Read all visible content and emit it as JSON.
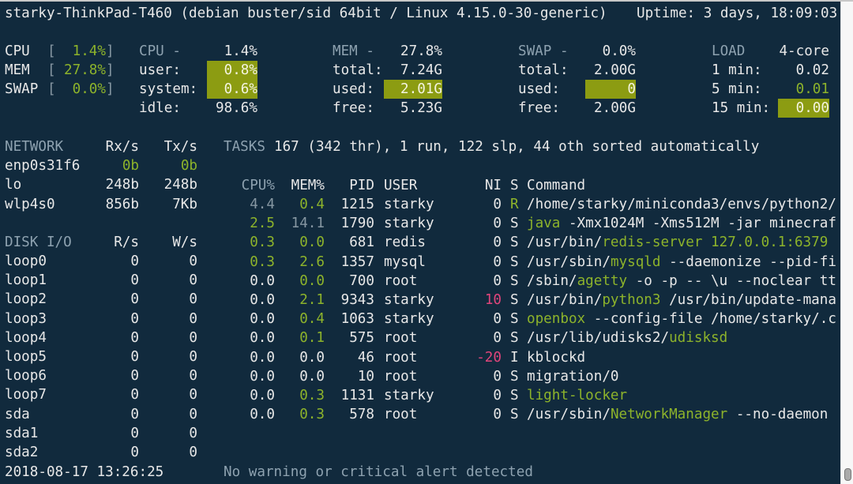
{
  "header": {
    "host": "starky-ThinkPad-T460 (debian buster/sid 64bit / Linux 4.15.0-30-generic)",
    "uptime": "Uptime: 3 days, 18:09:03"
  },
  "quicklook": [
    {
      "label": "CPU",
      "value": "1.4%"
    },
    {
      "label": "MEM",
      "value": "27.8%"
    },
    {
      "label": "SWAP",
      "value": "0.0%"
    }
  ],
  "cpu": {
    "title": "CPU -",
    "total": "1.4%",
    "rows": [
      {
        "label": "user:",
        "value": "0.8%",
        "highlight": true
      },
      {
        "label": "system:",
        "value": "0.6%",
        "highlight": true
      },
      {
        "label": "idle:",
        "value": "98.6%",
        "highlight": false
      }
    ]
  },
  "mem": {
    "title": "MEM -",
    "total": "27.8%",
    "rows": [
      {
        "label": "total:",
        "value": "7.24G",
        "highlight": false
      },
      {
        "label": "used:",
        "value": "2.01G",
        "highlight": true
      },
      {
        "label": "free:",
        "value": "5.23G",
        "highlight": false
      }
    ]
  },
  "swap": {
    "title": "SWAP -",
    "total": "0.0%",
    "rows": [
      {
        "label": "total:",
        "value": "2.00G",
        "highlight": false
      },
      {
        "label": "used:",
        "value": "0",
        "highlight": true
      },
      {
        "label": "free:",
        "value": "2.00G",
        "highlight": false
      }
    ]
  },
  "load": {
    "title": "LOAD",
    "total": "4-core",
    "rows": [
      {
        "label": "1 min:",
        "value": "0.02",
        "highlight": false,
        "color": "normal"
      },
      {
        "label": "5 min:",
        "value": "0.01",
        "highlight": false,
        "color": "green"
      },
      {
        "label": "15 min:",
        "value": "0.00",
        "highlight": true,
        "color": "normal"
      }
    ]
  },
  "network": {
    "title": "NETWORK",
    "rx_label": "Rx/s",
    "tx_label": "Tx/s",
    "rows": [
      {
        "name": "enp0s31f6",
        "rx": "0b",
        "tx": "0b",
        "green": true
      },
      {
        "name": "lo",
        "rx": "248b",
        "tx": "248b",
        "green": false
      },
      {
        "name": "wlp4s0",
        "rx": "856b",
        "tx": "7Kb",
        "green": false
      }
    ]
  },
  "disk": {
    "title": "DISK I/O",
    "r_label": "R/s",
    "w_label": "W/s",
    "rows": [
      {
        "name": "loop0",
        "r": "0",
        "w": "0"
      },
      {
        "name": "loop1",
        "r": "0",
        "w": "0"
      },
      {
        "name": "loop2",
        "r": "0",
        "w": "0"
      },
      {
        "name": "loop3",
        "r": "0",
        "w": "0"
      },
      {
        "name": "loop4",
        "r": "0",
        "w": "0"
      },
      {
        "name": "loop5",
        "r": "0",
        "w": "0"
      },
      {
        "name": "loop6",
        "r": "0",
        "w": "0"
      },
      {
        "name": "loop7",
        "r": "0",
        "w": "0"
      },
      {
        "name": "sda",
        "r": "0",
        "w": "0"
      },
      {
        "name": "sda1",
        "r": "0",
        "w": "0"
      },
      {
        "name": "sda2",
        "r": "0",
        "w": "0"
      }
    ]
  },
  "tasks": {
    "label": "TASKS",
    "summary": "167 (342 thr), 1 run, 122 slp, 44 oth sorted automatically"
  },
  "processes": {
    "columns": {
      "cpu": "CPU%",
      "mem": "MEM%",
      "pid": "PID",
      "user": "USER",
      "ni": "NI",
      "s": "S",
      "command": "Command"
    },
    "rows": [
      {
        "cpu": "4.4",
        "cpu_c": "dim",
        "mem": "0.4",
        "mem_c": "g",
        "pid": "1215",
        "user": "starky",
        "ni": "0",
        "ni_c": "",
        "s": "R",
        "s_c": "g",
        "cmd": [
          {
            "t": "/home/starky/miniconda3/envs/python2/",
            "c": ""
          }
        ]
      },
      {
        "cpu": "2.5",
        "cpu_c": "g",
        "mem": "14.1",
        "mem_c": "dim",
        "pid": "1790",
        "user": "starky",
        "ni": "0",
        "ni_c": "",
        "s": "S",
        "s_c": "",
        "cmd": [
          {
            "t": "java",
            "c": "g"
          },
          {
            "t": " -Xmx1024M -Xms512M -jar minecraf",
            "c": ""
          }
        ]
      },
      {
        "cpu": "0.3",
        "cpu_c": "g",
        "mem": "0.0",
        "mem_c": "g",
        "pid": "681",
        "user": "redis",
        "ni": "0",
        "ni_c": "",
        "s": "S",
        "s_c": "",
        "cmd": [
          {
            "t": "/usr/bin/",
            "c": ""
          },
          {
            "t": "redis-server 127.0.0.1:6379",
            "c": "g"
          }
        ]
      },
      {
        "cpu": "0.3",
        "cpu_c": "g",
        "mem": "2.6",
        "mem_c": "g",
        "pid": "1357",
        "user": "mysql",
        "ni": "0",
        "ni_c": "",
        "s": "S",
        "s_c": "",
        "cmd": [
          {
            "t": "/usr/sbin/",
            "c": ""
          },
          {
            "t": "mysqld",
            "c": "g"
          },
          {
            "t": " --daemonize --pid-fi",
            "c": ""
          }
        ]
      },
      {
        "cpu": "0.0",
        "cpu_c": "",
        "mem": "0.0",
        "mem_c": "g",
        "pid": "700",
        "user": "root",
        "ni": "0",
        "ni_c": "",
        "s": "S",
        "s_c": "",
        "cmd": [
          {
            "t": "/sbin/",
            "c": ""
          },
          {
            "t": "agetty",
            "c": "g"
          },
          {
            "t": " -o -p -- \\u --noclear tt",
            "c": ""
          }
        ]
      },
      {
        "cpu": "0.0",
        "cpu_c": "",
        "mem": "2.1",
        "mem_c": "g",
        "pid": "9343",
        "user": "starky",
        "ni": "10",
        "ni_c": "mag",
        "s": "S",
        "s_c": "",
        "cmd": [
          {
            "t": "/usr/bin/",
            "c": ""
          },
          {
            "t": "python3",
            "c": "g"
          },
          {
            "t": " /usr/bin/update-mana",
            "c": ""
          }
        ]
      },
      {
        "cpu": "0.0",
        "cpu_c": "",
        "mem": "0.4",
        "mem_c": "g",
        "pid": "1063",
        "user": "starky",
        "ni": "0",
        "ni_c": "",
        "s": "S",
        "s_c": "",
        "cmd": [
          {
            "t": "openbox",
            "c": "g"
          },
          {
            "t": " --config-file /home/starky/.c",
            "c": ""
          }
        ]
      },
      {
        "cpu": "0.0",
        "cpu_c": "",
        "mem": "0.1",
        "mem_c": "g",
        "pid": "575",
        "user": "root",
        "ni": "0",
        "ni_c": "",
        "s": "S",
        "s_c": "",
        "cmd": [
          {
            "t": "/usr/lib/udisks2/",
            "c": ""
          },
          {
            "t": "udisksd",
            "c": "g"
          }
        ]
      },
      {
        "cpu": "0.0",
        "cpu_c": "",
        "mem": "0.0",
        "mem_c": "",
        "pid": "46",
        "user": "root",
        "ni": "-20",
        "ni_c": "mag",
        "s": "I",
        "s_c": "",
        "cmd": [
          {
            "t": "kblockd",
            "c": ""
          }
        ]
      },
      {
        "cpu": "0.0",
        "cpu_c": "",
        "mem": "0.0",
        "mem_c": "",
        "pid": "10",
        "user": "root",
        "ni": "0",
        "ni_c": "",
        "s": "S",
        "s_c": "",
        "cmd": [
          {
            "t": "migration/0",
            "c": ""
          }
        ]
      },
      {
        "cpu": "0.0",
        "cpu_c": "",
        "mem": "0.3",
        "mem_c": "g",
        "pid": "1131",
        "user": "starky",
        "ni": "0",
        "ni_c": "",
        "s": "S",
        "s_c": "",
        "cmd": [
          {
            "t": "light-locker",
            "c": "g"
          }
        ]
      },
      {
        "cpu": "0.0",
        "cpu_c": "",
        "mem": "0.3",
        "mem_c": "g",
        "pid": "578",
        "user": "root",
        "ni": "0",
        "ni_c": "",
        "s": "S",
        "s_c": "",
        "cmd": [
          {
            "t": "/usr/sbin/",
            "c": ""
          },
          {
            "t": "NetworkManager",
            "c": "g"
          },
          {
            "t": " --no-daemon",
            "c": ""
          }
        ]
      }
    ]
  },
  "footer": {
    "datetime": "2018-08-17 13:26:25",
    "alert": "No warning or critical alert detected"
  },
  "colors": {
    "background": "#112a3d",
    "text": "#e8e8e8",
    "header": "#8ea2b0",
    "ok_green": "#8db32b",
    "highlight": "#8c9c12",
    "nice": "#e0457b"
  }
}
